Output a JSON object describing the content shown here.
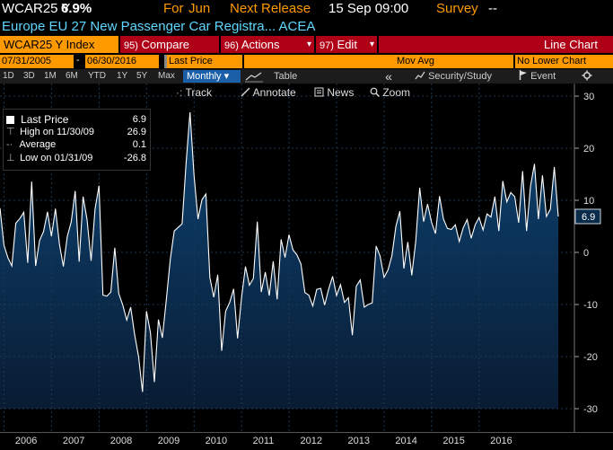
{
  "header": {
    "ticker": "WCAR25 Y",
    "value": "6.9%",
    "for_label": "For",
    "for_period": "Jun",
    "next_release_label": "Next Release",
    "next_release": "15 Sep 09:00",
    "survey_label": "Survey",
    "survey_value": "--",
    "description": "Europe EU 27 New Passenger Car Registra... ACEA"
  },
  "menu": {
    "index": "WCAR25 Y Index",
    "compare_num": "95)",
    "compare": "Compare",
    "actions_num": "96)",
    "actions": "Actions",
    "edit_num": "97)",
    "edit": "Edit",
    "chart_type": "Line Chart",
    "dropdown_arrow": "▾"
  },
  "inputs": {
    "start_date": "07/31/2005",
    "end_date": "06/30/2016",
    "field": "Last Price",
    "study": "Mov Avg",
    "lower_chart": "No Lower Chart"
  },
  "periods": [
    "1D",
    "3D",
    "1M",
    "6M",
    "YTD",
    "1Y",
    "5Y",
    "Max"
  ],
  "frequency": "Monthly",
  "table_label": "Table",
  "toolbar": {
    "collapse": "«",
    "security_study": "Security/Study",
    "event": "Event",
    "track": "Track",
    "annotate": "Annotate",
    "news": "News",
    "zoom": "Zoom"
  },
  "legend": {
    "last_price_label": "Last Price",
    "last_price_value": "6.9",
    "high_label": "High on 11/30/09",
    "high_value": "26.9",
    "average_label": "Average",
    "average_value": "0.1",
    "low_label": "Low on 01/31/09",
    "low_value": "-26.8"
  },
  "colors": {
    "accent_orange": "#ff9900",
    "menu_red": "#b00018",
    "info_cyan": "#5fd7ff",
    "area_top": "#0a3a63",
    "area_bottom": "#081a2e",
    "last_value_box": "#0b2b4a"
  },
  "icons": {
    "gear": "gear-icon",
    "flag": "flag-icon",
    "search": "search-icon",
    "news": "news-icon",
    "line-chart": "line-chart-icon"
  },
  "chart_data": {
    "type": "area",
    "ylim": [
      -30,
      30
    ],
    "yticks": [
      30,
      20,
      10,
      0,
      -10,
      -20,
      -30
    ],
    "x_tick_labels": [
      "2006",
      "2007",
      "2008",
      "2009",
      "2010",
      "2011",
      "2012",
      "2013",
      "2014",
      "2015",
      "2016"
    ],
    "last_value_label": "6.9",
    "series": [
      {
        "values": [
          8.5,
          1.4,
          -1.0,
          -2.6,
          5.6,
          6.5,
          7.7,
          -2.0,
          13.6,
          -2.6,
          2.3,
          4.0,
          7.8,
          3.1,
          8.4,
          1.6,
          -2.7,
          3.1,
          5.9,
          11.8,
          -1.8,
          10.7,
          6.3,
          -1.6,
          8.3,
          12.8,
          -8.2,
          -8.4,
          -7.6,
          0.9,
          -7.9,
          -10.1,
          -13.0,
          -10.5,
          -15.8,
          -20.0,
          -26.8,
          -11.3,
          -15.4,
          -24.9,
          -12.9,
          -16.4,
          -9.1,
          -1.4,
          4.1,
          4.8,
          5.5,
          17.0,
          26.9,
          14.8,
          6.4,
          10.1,
          11.2,
          -4.8,
          -8.6,
          -4.3,
          -18.9,
          -11.3,
          -9.6,
          -7.0,
          -16.5,
          -8.7,
          -2.7,
          -6.3,
          -5.0,
          5.9,
          -7.6,
          -3.8,
          -8.3,
          -1.7,
          -9.0,
          2.5,
          -1.0,
          3.4,
          0.5,
          -0.5,
          -2.2,
          -7.7,
          -8.2,
          -10.3,
          -7.1,
          -6.9,
          -10.1,
          -7.1,
          -4.6,
          -8.3,
          -6.2,
          -9.6,
          -8.7,
          -15.9,
          -6.5,
          -5.3,
          -10.5,
          -10.0,
          -9.7,
          1.2,
          -0.7,
          -4.8,
          -3.4,
          -0.6,
          5.0,
          7.9,
          -3.1,
          2.0,
          -4.4,
          2.1,
          12.4,
          5.9,
          9.3,
          5.8,
          3.6,
          10.8,
          6.4,
          4.6,
          4.4,
          5.3,
          2.1,
          4.7,
          6.3,
          2.7,
          5.3,
          6.7,
          4.3,
          7.4,
          6.8,
          10.7,
          4.1,
          13.7,
          9.7,
          11.5,
          10.7,
          5.7,
          15.6,
          4.1,
          12.7,
          17.0,
          6.4,
          14.8,
          6.9,
          8.3,
          16.4,
          6.9
        ]
      }
    ]
  }
}
